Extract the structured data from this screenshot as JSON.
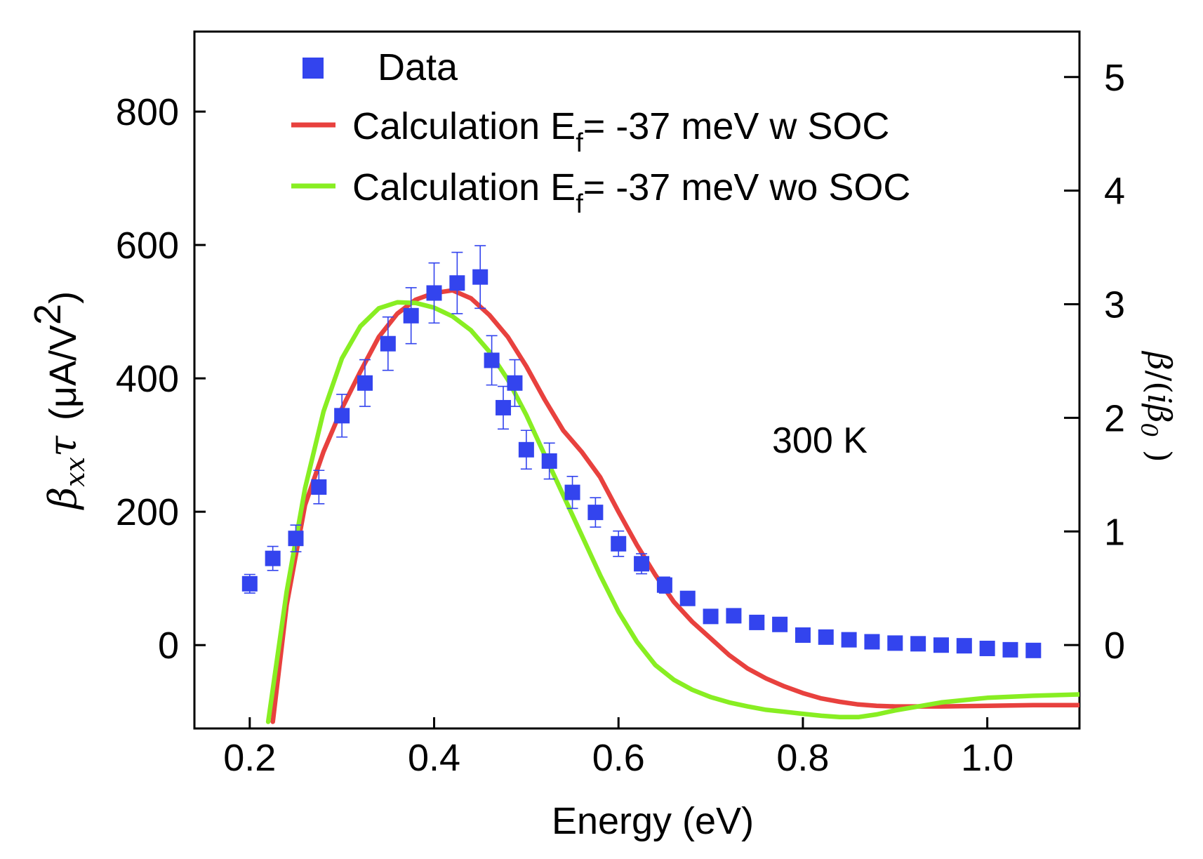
{
  "chart_data": {
    "type": "scatter",
    "xlabel": "Energy (eV)",
    "ylabel": "βxxτ (μA/V²)",
    "ylabel_parts": {
      "symbol": "β",
      "sub": "xx",
      "tau": "τ",
      "unit": "(μA/V",
      "sup": "2",
      "close": ")"
    },
    "y2label": "β/(iβ₀)",
    "y2label_parts": {
      "beta": "β",
      "slash": "/(",
      "i": "i",
      "beta0": "β",
      "sub0": "0",
      "close": ")"
    },
    "xlim": [
      0.14,
      1.1
    ],
    "ylim": [
      -125,
      920
    ],
    "y2lim": [
      -0.734,
      5.4
    ],
    "xticks": [
      0.2,
      0.4,
      0.6,
      0.8,
      1.0
    ],
    "xtick_labels": [
      "0.2",
      "0.4",
      "0.6",
      "0.8",
      "1.0"
    ],
    "yticks": [
      0,
      200,
      400,
      600,
      800
    ],
    "ytick_labels": [
      "0",
      "200",
      "400",
      "600",
      "800"
    ],
    "y2ticks": [
      0,
      1,
      2,
      3,
      4,
      5
    ],
    "y2tick_labels": [
      "0",
      "1",
      "2",
      "3",
      "4",
      "5"
    ],
    "annotation": "300 K",
    "legend_position": "top",
    "series": [
      {
        "name": "Data",
        "kind": "scatter",
        "color": "#3344ee",
        "marker": "square",
        "x": [
          0.2,
          0.225,
          0.25,
          0.275,
          0.3,
          0.325,
          0.35,
          0.375,
          0.4,
          0.425,
          0.45,
          0.4625,
          0.475,
          0.4875,
          0.5,
          0.525,
          0.55,
          0.575,
          0.6,
          0.625,
          0.65,
          0.675,
          0.7,
          0.725,
          0.75,
          0.775,
          0.8,
          0.825,
          0.85,
          0.875,
          0.9,
          0.925,
          0.95,
          0.975,
          1.0,
          1.025,
          1.05
        ],
        "y": [
          92,
          130,
          160,
          237,
          344,
          393,
          452,
          494,
          528,
          543,
          552,
          427,
          356,
          393,
          293,
          276,
          229,
          199,
          152,
          122,
          90,
          70,
          43,
          44,
          34,
          31,
          15,
          12,
          8,
          5,
          3,
          2,
          0,
          -1,
          -5,
          -7,
          -8
        ],
        "yerr": [
          14,
          18,
          20,
          25,
          32,
          35,
          40,
          42,
          45,
          46,
          47,
          37,
          32,
          35,
          29,
          27,
          24,
          22,
          19,
          15,
          12,
          10,
          7,
          6,
          5,
          4,
          3,
          2,
          2,
          2,
          1,
          1,
          1,
          1,
          1,
          1,
          1
        ]
      },
      {
        "name": "Calculation E",
        "name_sub": "f",
        "name_rest": "= -37 meV w SOC",
        "kind": "line",
        "color": "#e8413e",
        "x": [
          0.225,
          0.24,
          0.26,
          0.28,
          0.3,
          0.32,
          0.34,
          0.36,
          0.38,
          0.4,
          0.42,
          0.44,
          0.46,
          0.48,
          0.5,
          0.52,
          0.54,
          0.56,
          0.58,
          0.6,
          0.62,
          0.64,
          0.66,
          0.68,
          0.7,
          0.72,
          0.74,
          0.76,
          0.78,
          0.8,
          0.82,
          0.84,
          0.86,
          0.88,
          0.9,
          0.95,
          1.0,
          1.05,
          1.1
        ],
        "y": [
          -115,
          60,
          210,
          290,
          355,
          410,
          462,
          497,
          518,
          528,
          532,
          520,
          495,
          462,
          418,
          368,
          322,
          290,
          252,
          200,
          150,
          105,
          65,
          35,
          10,
          -15,
          -35,
          -50,
          -62,
          -72,
          -80,
          -85,
          -89,
          -91,
          -92,
          -92,
          -91,
          -90,
          -90
        ]
      },
      {
        "name": "Calculation E",
        "name_sub": "f",
        "name_rest": "= -37 meV wo SOC",
        "kind": "line",
        "color": "#88ee22",
        "x": [
          0.22,
          0.24,
          0.26,
          0.28,
          0.3,
          0.32,
          0.34,
          0.36,
          0.38,
          0.4,
          0.42,
          0.44,
          0.46,
          0.48,
          0.5,
          0.52,
          0.54,
          0.56,
          0.58,
          0.6,
          0.62,
          0.64,
          0.66,
          0.68,
          0.7,
          0.72,
          0.74,
          0.76,
          0.78,
          0.8,
          0.82,
          0.84,
          0.86,
          0.88,
          0.9,
          0.95,
          1.0,
          1.05,
          1.1
        ],
        "y": [
          -115,
          80,
          235,
          350,
          430,
          478,
          505,
          514,
          513,
          506,
          493,
          472,
          440,
          398,
          345,
          285,
          225,
          165,
          105,
          50,
          5,
          -30,
          -52,
          -67,
          -78,
          -86,
          -92,
          -97,
          -100,
          -103,
          -106,
          -108,
          -108,
          -104,
          -98,
          -86,
          -79,
          -76,
          -74
        ]
      }
    ]
  }
}
